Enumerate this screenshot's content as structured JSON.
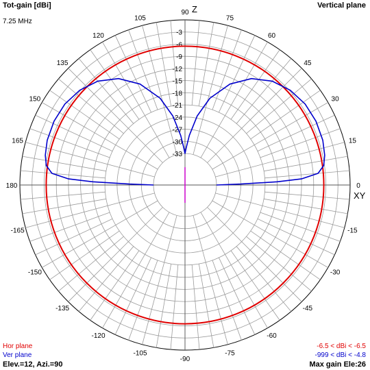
{
  "header": {
    "title": "Tot-gain [dBi]",
    "frequency": "7.25 MHz",
    "plane": "Vertical plane"
  },
  "axes": {
    "z_label": "Z",
    "xy_label": "XY"
  },
  "footer": {
    "hor_plane_label": "Hor plane",
    "ver_plane_label": "Ver plane",
    "elev_azi": "Elev.=12, Azi.=90",
    "hor_gain_range": "-6.5 < dBi < -6.5",
    "ver_gain_range": "-999 < dBi < -4.8",
    "max_gain": "Max gain Ele:26"
  },
  "colors": {
    "hor_plane": "#e00000",
    "ver_plane": "#0000cc",
    "grid": "#9a9a9a",
    "center_marker": "#cc00cc"
  },
  "chart_data": {
    "type": "polar",
    "title": "Tot-gain [dBi]",
    "subtitle": "Vertical plane",
    "radial_unit": "dBi",
    "radial_ticks": [
      -3,
      -6,
      -9,
      -12,
      -15,
      -18,
      -21,
      -24,
      -27,
      -30,
      -33
    ],
    "angle_ticks": [
      90,
      75,
      60,
      45,
      30,
      15,
      0,
      -15,
      -30,
      -45,
      -60,
      -75,
      -90,
      -105,
      -120,
      -135,
      -150,
      -165,
      180,
      165,
      150,
      135,
      120,
      105
    ],
    "series": [
      {
        "name": "Hor plane",
        "color": "#e00000",
        "points": [
          {
            "angle": 0,
            "gain": -6.5
          },
          {
            "angle": 45,
            "gain": -6.5
          },
          {
            "angle": 90,
            "gain": -6.5
          },
          {
            "angle": 135,
            "gain": -6.5
          },
          {
            "angle": 180,
            "gain": -6.5
          },
          {
            "angle": -135,
            "gain": -6.5
          },
          {
            "angle": -90,
            "gain": -6.5
          },
          {
            "angle": -45,
            "gain": -6.5
          }
        ]
      },
      {
        "name": "Ver plane",
        "color": "#0000cc",
        "points": [
          {
            "angle": 0,
            "gain": -33
          },
          {
            "angle": 1,
            "gain": -27
          },
          {
            "angle": 2,
            "gain": -18
          },
          {
            "angle": 3,
            "gain": -12
          },
          {
            "angle": 5,
            "gain": -7.8
          },
          {
            "angle": 8,
            "gain": -6.2
          },
          {
            "angle": 12,
            "gain": -5.5
          },
          {
            "angle": 18,
            "gain": -5.0
          },
          {
            "angle": 26,
            "gain": -4.8
          },
          {
            "angle": 34,
            "gain": -5.0
          },
          {
            "angle": 42,
            "gain": -5.8
          },
          {
            "angle": 50,
            "gain": -7.3
          },
          {
            "angle": 58,
            "gain": -9.8
          },
          {
            "angle": 66,
            "gain": -13.5
          },
          {
            "angle": 74,
            "gain": -18.5
          },
          {
            "angle": 80,
            "gain": -23.5
          },
          {
            "angle": 85,
            "gain": -28.5
          },
          {
            "angle": 88,
            "gain": -31.5
          },
          {
            "angle": 90,
            "gain": -33
          },
          {
            "angle": 92,
            "gain": -31.5
          },
          {
            "angle": 95,
            "gain": -28.5
          },
          {
            "angle": 100,
            "gain": -23.5
          },
          {
            "angle": 106,
            "gain": -18.5
          },
          {
            "angle": 114,
            "gain": -13.5
          },
          {
            "angle": 122,
            "gain": -9.8
          },
          {
            "angle": 130,
            "gain": -7.3
          },
          {
            "angle": 138,
            "gain": -5.8
          },
          {
            "angle": 146,
            "gain": -5.0
          },
          {
            "angle": 154,
            "gain": -4.8
          },
          {
            "angle": 162,
            "gain": -5.0
          },
          {
            "angle": 168,
            "gain": -5.5
          },
          {
            "angle": 172,
            "gain": -6.2
          },
          {
            "angle": 175,
            "gain": -7.8
          },
          {
            "angle": 177,
            "gain": -12
          },
          {
            "angle": 178,
            "gain": -18
          },
          {
            "angle": 179,
            "gain": -27
          },
          {
            "angle": 180,
            "gain": -33
          }
        ]
      }
    ],
    "grid": true
  }
}
